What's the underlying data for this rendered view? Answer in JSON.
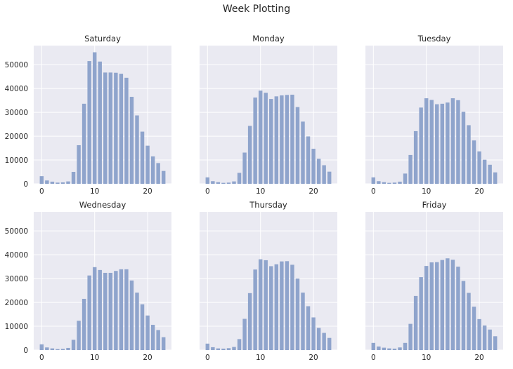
{
  "suptitle": "Week Plotting",
  "colors": {
    "bar": "#8fa4cc",
    "panel": "#eaeaf2",
    "grid": "#ffffff"
  },
  "chart_data": {
    "type": "bar",
    "x": [
      0,
      1,
      2,
      3,
      4,
      5,
      6,
      7,
      8,
      9,
      10,
      11,
      12,
      13,
      14,
      15,
      16,
      17,
      18,
      19,
      20,
      21,
      22,
      23
    ],
    "xticks": [
      0,
      10,
      20
    ],
    "xlim": [
      -1.5,
      24.5
    ],
    "yticks": [
      0,
      10000,
      20000,
      30000,
      40000,
      50000
    ],
    "ylim": [
      0,
      58000
    ],
    "sharey": true,
    "grid": true,
    "panels": [
      {
        "title": "Saturday",
        "values": [
          3200,
          1400,
          900,
          500,
          600,
          1000,
          5000,
          16200,
          33600,
          51500,
          55200,
          51300,
          46700,
          46700,
          46600,
          46200,
          44500,
          36500,
          28700,
          21900,
          16000,
          11500,
          8700,
          5400
        ]
      },
      {
        "title": "Monday",
        "values": [
          2700,
          1100,
          700,
          400,
          500,
          1000,
          4600,
          13100,
          24300,
          36200,
          39100,
          38200,
          35600,
          36700,
          37100,
          37300,
          37400,
          32200,
          26100,
          19900,
          14700,
          10500,
          7800,
          5100
        ]
      },
      {
        "title": "Tuesday",
        "values": [
          2700,
          1100,
          700,
          400,
          500,
          900,
          4300,
          12100,
          22100,
          32000,
          35900,
          35200,
          33400,
          33600,
          34100,
          35900,
          35100,
          30200,
          24600,
          18200,
          13600,
          10100,
          8000,
          4800
        ]
      },
      {
        "title": "Wednesday",
        "values": [
          2400,
          1100,
          700,
          400,
          500,
          900,
          4300,
          12300,
          21500,
          31300,
          34800,
          33600,
          32400,
          32400,
          33200,
          33900,
          33900,
          29200,
          24100,
          19200,
          14500,
          10600,
          8400,
          5400
        ]
      },
      {
        "title": "Thursday",
        "values": [
          2700,
          1200,
          700,
          600,
          800,
          1300,
          4600,
          13100,
          23900,
          33800,
          38100,
          37700,
          35200,
          36000,
          37200,
          37300,
          35800,
          30000,
          24100,
          18400,
          13700,
          9300,
          7200,
          5100
        ]
      },
      {
        "title": "Friday",
        "values": [
          3000,
          1500,
          1000,
          700,
          600,
          1100,
          3000,
          11000,
          22700,
          30600,
          35300,
          36800,
          36900,
          37800,
          38500,
          37900,
          35000,
          29000,
          24000,
          18200,
          13000,
          10300,
          8600,
          5800
        ]
      }
    ]
  }
}
